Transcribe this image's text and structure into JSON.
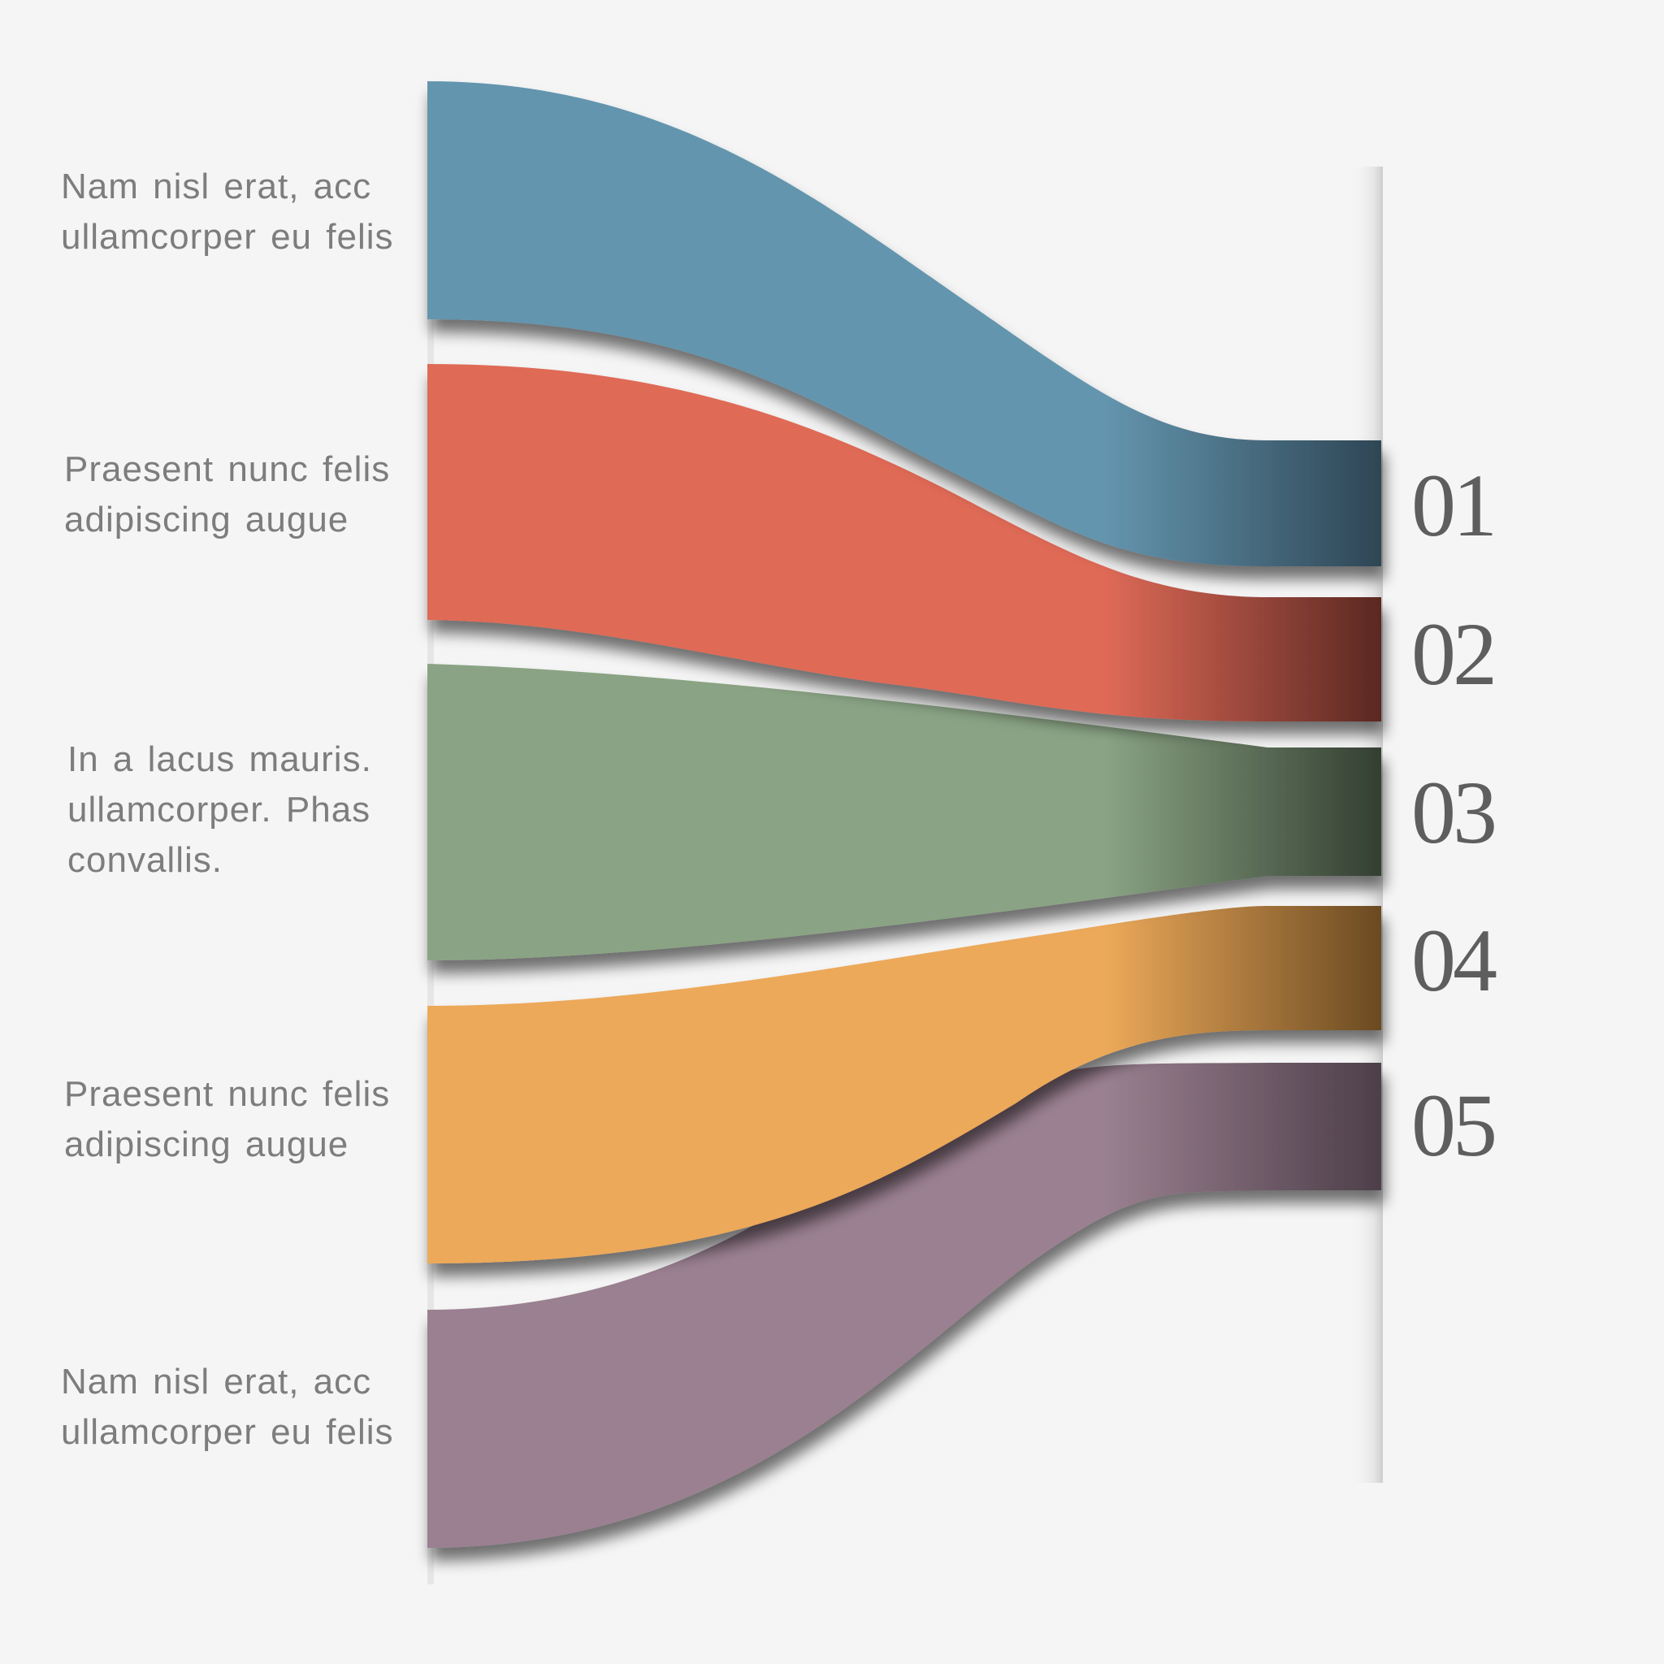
{
  "items": [
    {
      "number": "01",
      "caption_line1": "Nam nisl erat, acc",
      "caption_line2": "ullamcorper eu felis",
      "caption_line3": "",
      "color": "#6495ae",
      "color_dark": "#2e4655"
    },
    {
      "number": "02",
      "caption_line1": "Praesent nunc felis",
      "caption_line2": "adipiscing augue",
      "caption_line3": "",
      "color": "#df6a57",
      "color_dark": "#5a2822"
    },
    {
      "number": "03",
      "caption_line1": "In a lacus mauris.",
      "caption_line2": "ullamcorper. Phas",
      "caption_line3": "convallis.",
      "color": "#8aa384",
      "color_dark": "#333f31"
    },
    {
      "number": "04",
      "caption_line1": "Praesent nunc felis",
      "caption_line2": "adipiscing augue",
      "caption_line3": "",
      "color": "#eca95a",
      "color_dark": "#6b4a22"
    },
    {
      "number": "05",
      "caption_line1": "Nam nisl erat, acc",
      "caption_line2": "ullamcorper eu felis",
      "caption_line3": "",
      "color": "#9a8090",
      "color_dark": "#4d3f49"
    }
  ]
}
